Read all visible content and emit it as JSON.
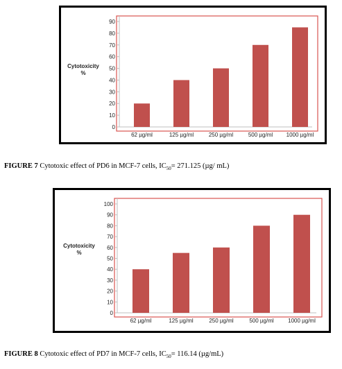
{
  "charts_meta": [
    {
      "caption_label": "FIGURE 7",
      "caption_text_pre": "Cytotoxic effect of PD6 in MCF-7 cells, IC",
      "caption_sub": "50",
      "caption_text_post": "= 271.125 (µg/ mL)"
    },
    {
      "caption_label": "FIGURE 8",
      "caption_text_pre": "Cytotoxic effect of PD7 in MCF-7 cells, IC",
      "caption_sub": "50",
      "caption_text_post": "= 116.14 (µg/mL)"
    }
  ],
  "colors": {
    "bar": "#c0504d",
    "plot_border": "#d9534f",
    "frame": "#000000"
  },
  "chart_data": [
    {
      "type": "bar",
      "categories": [
        "62 µg/ml",
        "125 µg/ml",
        "250 µg/ml",
        "500 µg/ml",
        "1000  µg/ml"
      ],
      "values": [
        20,
        40,
        50,
        70,
        85
      ],
      "title": "",
      "xlabel": "",
      "ylabel_line1": "Cytotoxicity",
      "ylabel_line2": "%",
      "ylim": [
        0,
        90
      ],
      "yticks": [
        "0",
        "10",
        "20",
        "30",
        "40",
        "50",
        "60",
        "70",
        "80",
        "90"
      ],
      "grid": false,
      "legend": "none"
    },
    {
      "type": "bar",
      "categories": [
        "62 µg/ml",
        "125 µg/ml",
        "250 µg/ml",
        "500 µg/ml",
        "1000  µg/ml"
      ],
      "values": [
        40,
        55,
        60,
        80,
        90
      ],
      "title": "",
      "xlabel": "",
      "ylabel_line1": "Cytotoxicity",
      "ylabel_line2": "%",
      "ylim": [
        0,
        100
      ],
      "yticks": [
        "0",
        "10",
        "20",
        "30",
        "40",
        "50",
        "60",
        "70",
        "80",
        "90",
        "100"
      ],
      "grid": false,
      "legend": "none"
    }
  ]
}
